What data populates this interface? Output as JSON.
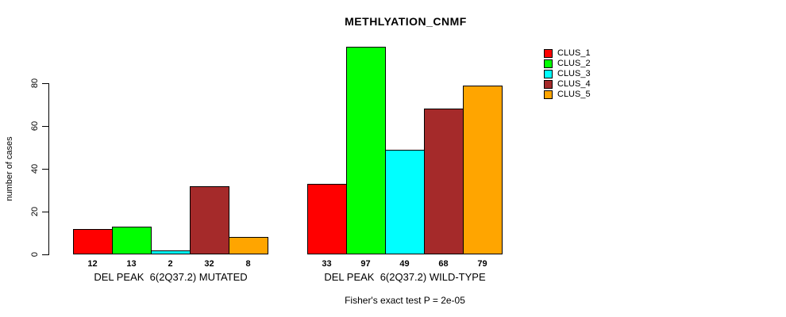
{
  "title": "METHLYATION_CNMF",
  "y_axis": {
    "label": "number of cases",
    "ticks": [
      0,
      20,
      40,
      60,
      80
    ]
  },
  "caption": "Fisher's exact test P = 2e-05",
  "chart_data": {
    "type": "bar",
    "title": "METHLYATION_CNMF",
    "xlabel": "",
    "ylabel": "number of cases",
    "ylim": [
      0,
      100
    ],
    "yticks": [
      0,
      20,
      40,
      60,
      80
    ],
    "grid": false,
    "legend_position": "right",
    "categories": [
      "DEL PEAK  6(2Q37.2) MUTATED",
      "DEL PEAK  6(2Q37.2) WILD-TYPE"
    ],
    "series": [
      {
        "name": "CLUS_1",
        "color": "#FF0000",
        "values": [
          12,
          33
        ]
      },
      {
        "name": "CLUS_2",
        "color": "#00FF00",
        "values": [
          13,
          97
        ]
      },
      {
        "name": "CLUS_3",
        "color": "#00FFFF",
        "values": [
          2,
          49
        ]
      },
      {
        "name": "CLUS_4",
        "color": "#A52A2A",
        "values": [
          32,
          68
        ]
      },
      {
        "name": "CLUS_5",
        "color": "#FFA500",
        "values": [
          8,
          79
        ]
      }
    ],
    "bar_value_labels": [
      [
        12,
        13,
        2,
        32,
        8
      ],
      [
        33,
        97,
        49,
        68,
        79
      ]
    ],
    "annotation": "Fisher's exact test P = 2e-05"
  }
}
